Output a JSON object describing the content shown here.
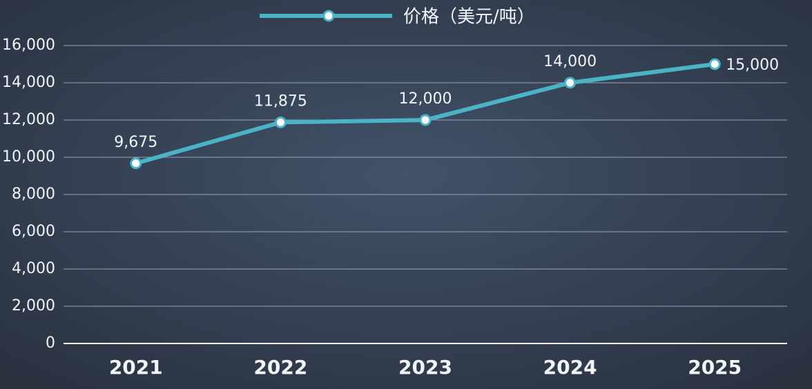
{
  "chart_data": {
    "type": "line",
    "categories": [
      "2021",
      "2022",
      "2023",
      "2024",
      "2025"
    ],
    "series": [
      {
        "name": "价格（美元/吨）",
        "color": "#4ab3c6",
        "values": [
          9675,
          11875,
          12000,
          14000,
          15000
        ],
        "value_labels": [
          "9,675",
          "11,875",
          "12,000",
          "14,000",
          "15,000"
        ]
      }
    ],
    "ylim": [
      0,
      16000
    ],
    "yticks": [
      0,
      {
        "value": 2000,
        "label": "2,000"
      },
      {
        "value": 4000,
        "label": "4,000"
      },
      {
        "value": 6000,
        "label": "6,000"
      },
      {
        "value": 8000,
        "label": "8,000"
      },
      {
        "value": 10000,
        "label": "10,000"
      },
      {
        "value": 12000,
        "label": "12,000"
      },
      {
        "value": 14000,
        "label": "14,000"
      },
      {
        "value": 16000,
        "label": "16,000"
      }
    ],
    "grid": true,
    "legend": "top"
  }
}
